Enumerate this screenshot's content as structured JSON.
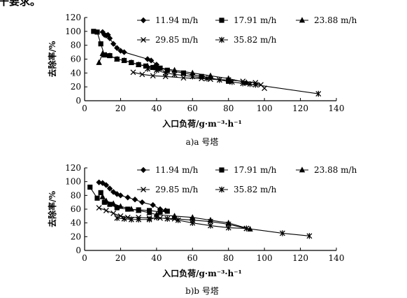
{
  "top_fragment": "干要求。",
  "chart_data": [
    {
      "type": "line",
      "caption": "a)a 号塔",
      "xlabel": "入口负荷/g·m⁻³·h⁻¹",
      "ylabel": "去除率/%",
      "xlim": [
        0,
        140
      ],
      "ylim": [
        0,
        120
      ],
      "xticks": [
        0,
        20,
        40,
        60,
        80,
        100,
        120,
        140
      ],
      "yticks": [
        0,
        20,
        40,
        60,
        80,
        100,
        120
      ],
      "grid": false,
      "legend_position": "top-right",
      "series": [
        {
          "name": "11.94 m/h",
          "marker": "diamond",
          "x": [
            10,
            11,
            12,
            13,
            14,
            16,
            18,
            20,
            22,
            35,
            37,
            40
          ],
          "y": [
            99,
            95,
            94,
            95,
            90,
            82,
            76,
            72,
            70,
            60,
            58,
            52
          ]
        },
        {
          "name": "17.91 m/h",
          "marker": "square",
          "x": [
            5,
            7,
            9,
            11,
            14,
            18,
            22,
            26,
            30,
            34,
            38,
            42,
            46,
            55,
            65,
            80
          ],
          "y": [
            100,
            99,
            82,
            66,
            65,
            60,
            58,
            55,
            52,
            50,
            48,
            47,
            44,
            40,
            35,
            28
          ]
        },
        {
          "name": "23.88 m/h",
          "marker": "triangle",
          "x": [
            8,
            10,
            12,
            14,
            18,
            22,
            26,
            30,
            35,
            40,
            50,
            60,
            70,
            80,
            90
          ],
          "y": [
            55,
            68,
            66,
            65,
            60,
            58,
            55,
            52,
            50,
            48,
            44,
            40,
            36,
            32,
            26
          ]
        },
        {
          "name": "29.85 m/h",
          "marker": "x",
          "x": [
            27,
            32,
            38,
            45,
            55,
            65,
            70,
            80,
            88,
            95,
            98,
            100
          ],
          "y": [
            41,
            38,
            36,
            35,
            33,
            32,
            31,
            30,
            28,
            26,
            23,
            18
          ]
        },
        {
          "name": "35.82 m/h",
          "marker": "asterisk",
          "x": [
            35,
            40,
            45,
            50,
            60,
            68,
            75,
            82,
            88,
            92,
            95,
            130
          ],
          "y": [
            46,
            44,
            40,
            38,
            35,
            32,
            30,
            27,
            25,
            24,
            23,
            10
          ]
        }
      ]
    },
    {
      "type": "line",
      "caption": "b)b 号塔",
      "xlabel": "入口负荷/g·m⁻³·h⁻¹",
      "ylabel": "去除率/%",
      "xlim": [
        0,
        140
      ],
      "ylim": [
        0,
        120
      ],
      "xticks": [
        0,
        20,
        40,
        60,
        80,
        100,
        120,
        140
      ],
      "yticks": [
        0,
        20,
        40,
        60,
        80,
        100,
        120
      ],
      "grid": false,
      "legend_position": "top-right",
      "series": [
        {
          "name": "11.94 m/h",
          "marker": "diamond",
          "x": [
            8,
            10,
            12,
            14,
            16,
            18,
            20,
            24,
            28,
            32,
            38,
            42,
            45
          ],
          "y": [
            99,
            98,
            95,
            90,
            85,
            82,
            80,
            77,
            74,
            70,
            66,
            60,
            58
          ]
        },
        {
          "name": "17.91 m/h",
          "marker": "square",
          "x": [
            3,
            7,
            9,
            11,
            14,
            18,
            24,
            30,
            36,
            42,
            46
          ],
          "y": [
            92,
            76,
            84,
            70,
            67,
            62,
            60,
            59,
            58,
            56,
            57
          ]
        },
        {
          "name": "23.88 m/h",
          "marker": "triangle",
          "x": [
            10,
            12,
            16,
            20,
            26,
            30,
            36,
            40,
            50,
            60,
            70,
            80,
            92
          ],
          "y": [
            78,
            72,
            68,
            64,
            60,
            58,
            55,
            52,
            50,
            48,
            44,
            40,
            31
          ]
        },
        {
          "name": "29.85 m/h",
          "marker": "x",
          "x": [
            8,
            12,
            16,
            20,
            24,
            30,
            36,
            42,
            50,
            60,
            70,
            80,
            90
          ],
          "y": [
            62,
            58,
            54,
            50,
            48,
            48,
            47,
            47,
            46,
            44,
            42,
            38,
            32
          ]
        },
        {
          "name": "35.82 m/h",
          "marker": "asterisk",
          "x": [
            18,
            22,
            26,
            30,
            36,
            40,
            46,
            52,
            60,
            70,
            80,
            90,
            110,
            125
          ],
          "y": [
            47,
            46,
            45,
            45,
            45,
            48,
            46,
            44,
            40,
            36,
            33,
            32,
            25,
            21
          ]
        }
      ]
    }
  ]
}
